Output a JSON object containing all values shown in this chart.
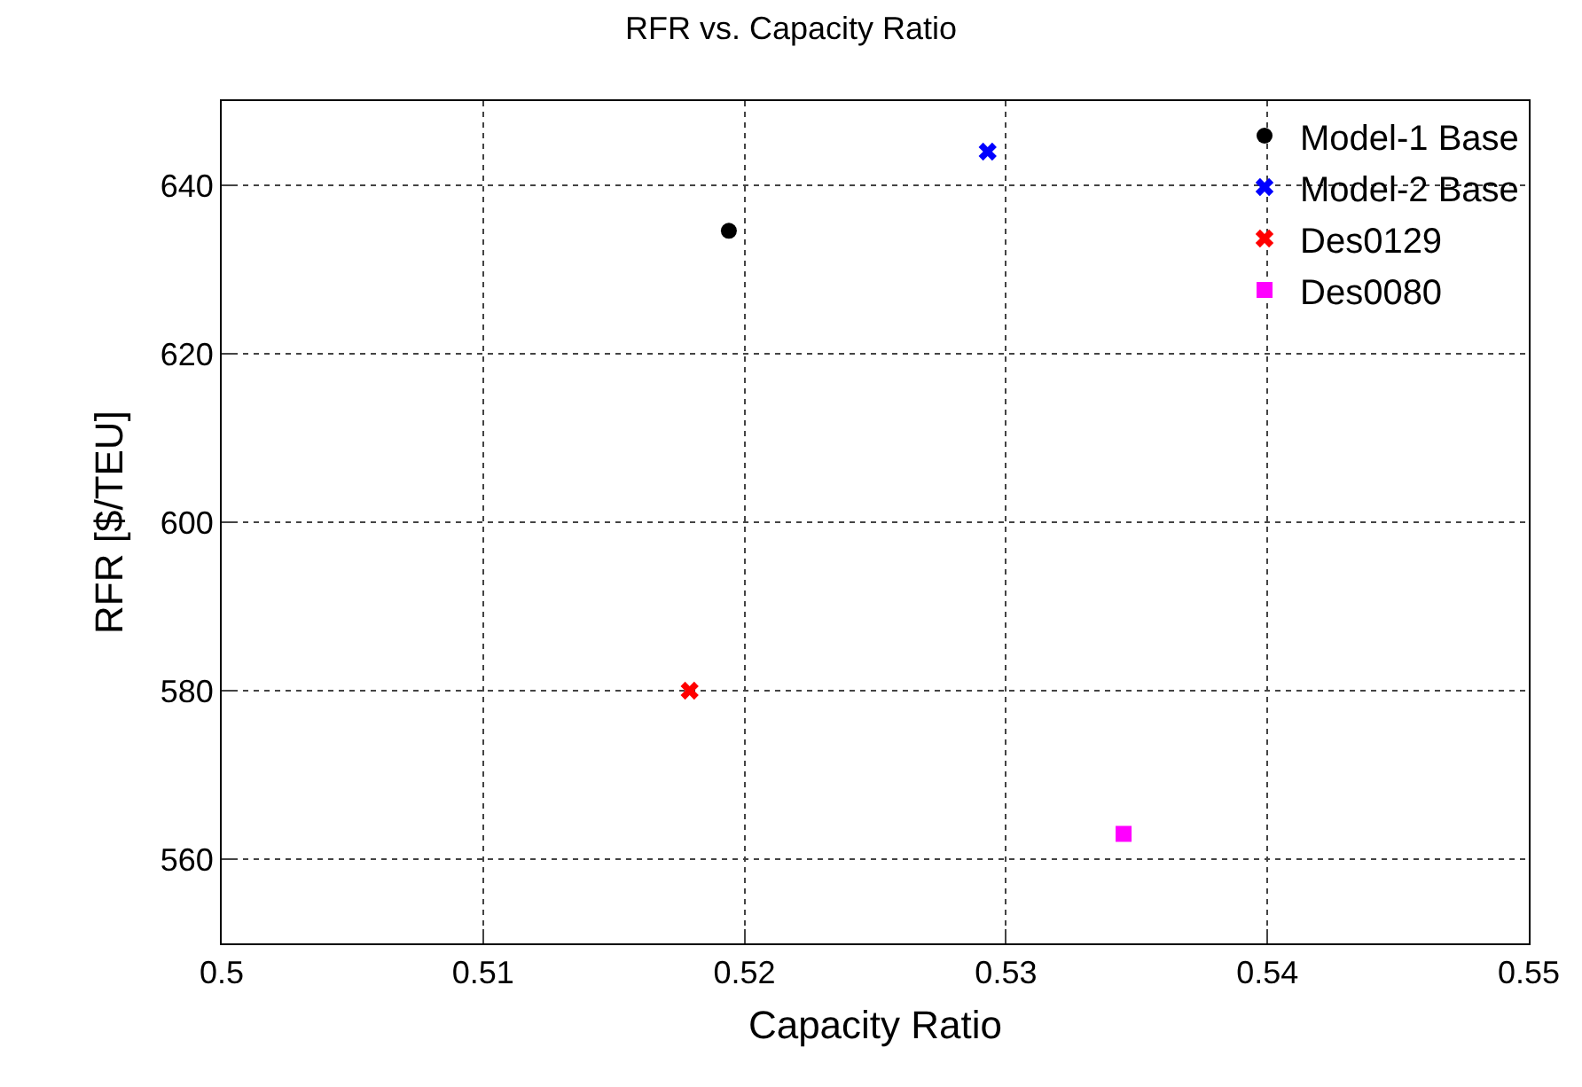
{
  "chart_data": {
    "type": "scatter",
    "title": "RFR vs. Capacity Ratio",
    "xlabel": "Capacity Ratio",
    "ylabel": "RFR [$/TEU]",
    "series": [
      {
        "name": "Model-1 Base",
        "color": "#000000",
        "marker": "circle",
        "x": [
          0.5194
        ],
        "values": [
          634.6
        ]
      },
      {
        "name": "Model-2 Base",
        "color": "#0000ff",
        "marker": "cross",
        "x": [
          0.5293
        ],
        "values": [
          644
        ]
      },
      {
        "name": "Des0129",
        "color": "#ff0000",
        "marker": "cross",
        "x": [
          0.5179
        ],
        "values": [
          580
        ]
      },
      {
        "name": "Des0080",
        "color": "#ff00ff",
        "marker": "square",
        "x": [
          0.5345
        ],
        "values": [
          563
        ]
      }
    ],
    "xlim": [
      0.5,
      0.55
    ],
    "xticks": [
      0.5,
      0.51,
      0.52,
      0.53,
      0.54,
      0.55
    ],
    "ylim": [
      550,
      650
    ],
    "yticks": [
      560,
      580,
      600,
      620,
      640
    ],
    "grid": true,
    "legend": "top right"
  }
}
